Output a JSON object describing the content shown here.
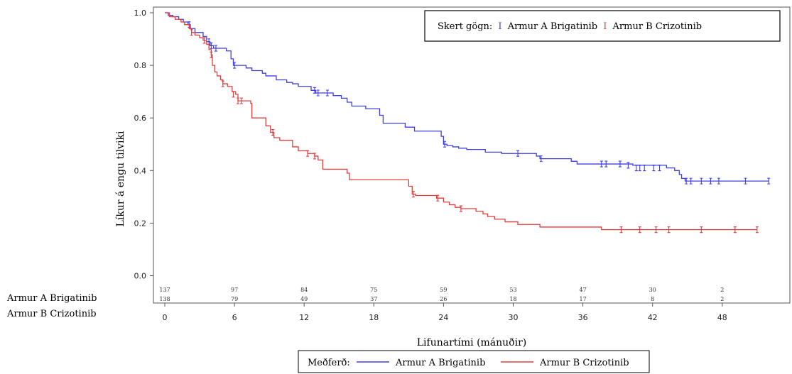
{
  "chart_data": {
    "type": "line",
    "ylabel": "Líkur á engu tilviki",
    "xlabel": "Lifunartími (mánuðir)",
    "xlim": [
      0,
      52
    ],
    "ylim": [
      0,
      1
    ],
    "x_ticks": [
      0,
      6,
      12,
      18,
      24,
      30,
      36,
      42,
      48
    ],
    "x_tick_labels": [
      "0",
      "6",
      "12",
      "18",
      "24",
      "30",
      "36",
      "42",
      "48"
    ],
    "y_ticks": [
      0,
      0.2,
      0.4,
      0.6,
      0.8,
      1.0
    ],
    "y_tick_labels": [
      "0.0",
      "0.2",
      "0.4",
      "0.6",
      "0.8",
      "1.0"
    ],
    "censor_legend": {
      "prefix": "Skert gögn:",
      "marker": "I",
      "items": [
        "Armur A Brigatinib",
        "Armur B Crizotinib"
      ]
    },
    "legend": {
      "title": "Meðferð:",
      "items": [
        "Armur A Brigatinib",
        "Armur B Crizotinib"
      ]
    },
    "series": [
      {
        "name": "Armur A Brigatinib",
        "color": "#3f3fe0",
        "steps": [
          [
            0,
            1.0
          ],
          [
            0.3,
            0.99
          ],
          [
            0.7,
            0.985
          ],
          [
            1.2,
            0.975
          ],
          [
            1.6,
            0.965
          ],
          [
            2.0,
            0.955
          ],
          [
            2.2,
            0.94
          ],
          [
            2.6,
            0.925
          ],
          [
            3.3,
            0.91
          ],
          [
            3.6,
            0.89
          ],
          [
            3.9,
            0.875
          ],
          [
            4.2,
            0.865
          ],
          [
            5.3,
            0.855
          ],
          [
            5.7,
            0.825
          ],
          [
            5.9,
            0.8
          ],
          [
            7.0,
            0.79
          ],
          [
            7.5,
            0.78
          ],
          [
            8.4,
            0.77
          ],
          [
            8.7,
            0.76
          ],
          [
            9.6,
            0.745
          ],
          [
            10.5,
            0.735
          ],
          [
            11.0,
            0.73
          ],
          [
            11.5,
            0.72
          ],
          [
            12.6,
            0.705
          ],
          [
            13.0,
            0.695
          ],
          [
            14.5,
            0.685
          ],
          [
            15.2,
            0.675
          ],
          [
            15.7,
            0.66
          ],
          [
            16.1,
            0.645
          ],
          [
            17.3,
            0.635
          ],
          [
            18.5,
            0.61
          ],
          [
            18.8,
            0.58
          ],
          [
            20.7,
            0.565
          ],
          [
            21.5,
            0.55
          ],
          [
            23.8,
            0.53
          ],
          [
            24.0,
            0.5
          ],
          [
            24.3,
            0.495
          ],
          [
            24.8,
            0.49
          ],
          [
            25.3,
            0.485
          ],
          [
            26.0,
            0.48
          ],
          [
            27.6,
            0.47
          ],
          [
            29.0,
            0.465
          ],
          [
            32.0,
            0.455
          ],
          [
            32.3,
            0.445
          ],
          [
            35.0,
            0.435
          ],
          [
            35.5,
            0.425
          ],
          [
            40.3,
            0.42
          ],
          [
            43.2,
            0.41
          ],
          [
            43.9,
            0.4
          ],
          [
            44.3,
            0.385
          ],
          [
            44.5,
            0.37
          ],
          [
            44.8,
            0.36
          ]
        ],
        "end_x": 52,
        "censors": [
          [
            2.1,
            0.955
          ],
          [
            3.8,
            0.89
          ],
          [
            4.0,
            0.875
          ],
          [
            4.4,
            0.865
          ],
          [
            6.0,
            0.8
          ],
          [
            12.9,
            0.705
          ],
          [
            13.2,
            0.695
          ],
          [
            14.0,
            0.695
          ],
          [
            24.1,
            0.5
          ],
          [
            30.4,
            0.465
          ],
          [
            32.4,
            0.445
          ],
          [
            37.6,
            0.425
          ],
          [
            38.0,
            0.425
          ],
          [
            39.2,
            0.425
          ],
          [
            39.9,
            0.42
          ],
          [
            40.6,
            0.41
          ],
          [
            40.9,
            0.41
          ],
          [
            41.3,
            0.41
          ],
          [
            42.1,
            0.41
          ],
          [
            42.6,
            0.41
          ],
          [
            44.9,
            0.36
          ],
          [
            45.3,
            0.36
          ],
          [
            46.2,
            0.36
          ],
          [
            47.0,
            0.36
          ],
          [
            47.7,
            0.36
          ],
          [
            50.0,
            0.36
          ],
          [
            52.0,
            0.36
          ]
        ]
      },
      {
        "name": "Armur B Crizotinib",
        "color": "#e03f3f",
        "steps": [
          [
            0,
            1.0
          ],
          [
            0.4,
            0.985
          ],
          [
            0.9,
            0.975
          ],
          [
            1.4,
            0.965
          ],
          [
            1.7,
            0.955
          ],
          [
            2.1,
            0.94
          ],
          [
            2.3,
            0.925
          ],
          [
            2.6,
            0.915
          ],
          [
            3.0,
            0.905
          ],
          [
            3.3,
            0.895
          ],
          [
            3.6,
            0.88
          ],
          [
            3.8,
            0.86
          ],
          [
            4.0,
            0.84
          ],
          [
            4.1,
            0.8
          ],
          [
            4.3,
            0.775
          ],
          [
            4.5,
            0.76
          ],
          [
            4.8,
            0.745
          ],
          [
            5.0,
            0.73
          ],
          [
            5.4,
            0.72
          ],
          [
            5.8,
            0.7
          ],
          [
            6.1,
            0.69
          ],
          [
            6.3,
            0.665
          ],
          [
            7.4,
            0.655
          ],
          [
            7.5,
            0.6
          ],
          [
            8.7,
            0.57
          ],
          [
            9.1,
            0.545
          ],
          [
            9.4,
            0.525
          ],
          [
            9.9,
            0.515
          ],
          [
            11.0,
            0.49
          ],
          [
            11.5,
            0.475
          ],
          [
            12.3,
            0.465
          ],
          [
            12.9,
            0.455
          ],
          [
            13.2,
            0.44
          ],
          [
            13.6,
            0.405
          ],
          [
            15.7,
            0.39
          ],
          [
            15.9,
            0.365
          ],
          [
            21.0,
            0.34
          ],
          [
            21.3,
            0.31
          ],
          [
            21.6,
            0.305
          ],
          [
            23.4,
            0.295
          ],
          [
            24.0,
            0.28
          ],
          [
            24.5,
            0.27
          ],
          [
            25.0,
            0.26
          ],
          [
            25.5,
            0.255
          ],
          [
            26.8,
            0.245
          ],
          [
            27.4,
            0.235
          ],
          [
            27.8,
            0.225
          ],
          [
            28.4,
            0.215
          ],
          [
            29.3,
            0.205
          ],
          [
            30.4,
            0.195
          ],
          [
            32.3,
            0.185
          ],
          [
            37.6,
            0.175
          ]
        ],
        "end_x": 51,
        "censors": [
          [
            2.3,
            0.925
          ],
          [
            3.4,
            0.895
          ],
          [
            4.0,
            0.84
          ],
          [
            5.0,
            0.73
          ],
          [
            5.9,
            0.69
          ],
          [
            6.3,
            0.665
          ],
          [
            6.6,
            0.665
          ],
          [
            9.3,
            0.545
          ],
          [
            12.3,
            0.465
          ],
          [
            12.9,
            0.455
          ],
          [
            21.4,
            0.31
          ],
          [
            23.5,
            0.295
          ],
          [
            25.5,
            0.255
          ],
          [
            39.3,
            0.175
          ],
          [
            40.9,
            0.175
          ],
          [
            42.3,
            0.175
          ],
          [
            43.4,
            0.175
          ],
          [
            46.2,
            0.175
          ],
          [
            49.1,
            0.175
          ],
          [
            51.0,
            0.175
          ]
        ]
      }
    ],
    "risk_table": {
      "times": [
        0,
        6,
        12,
        18,
        24,
        30,
        36,
        42,
        48
      ],
      "rows": [
        {
          "label": "Armur A Brigatinib",
          "values": [
            "137",
            "97",
            "84",
            "75",
            "59",
            "53",
            "47",
            "30",
            "2"
          ]
        },
        {
          "label": "Armur B Crizotinib",
          "values": [
            "138",
            "79",
            "49",
            "37",
            "26",
            "18",
            "17",
            "8",
            "2"
          ]
        }
      ]
    }
  }
}
